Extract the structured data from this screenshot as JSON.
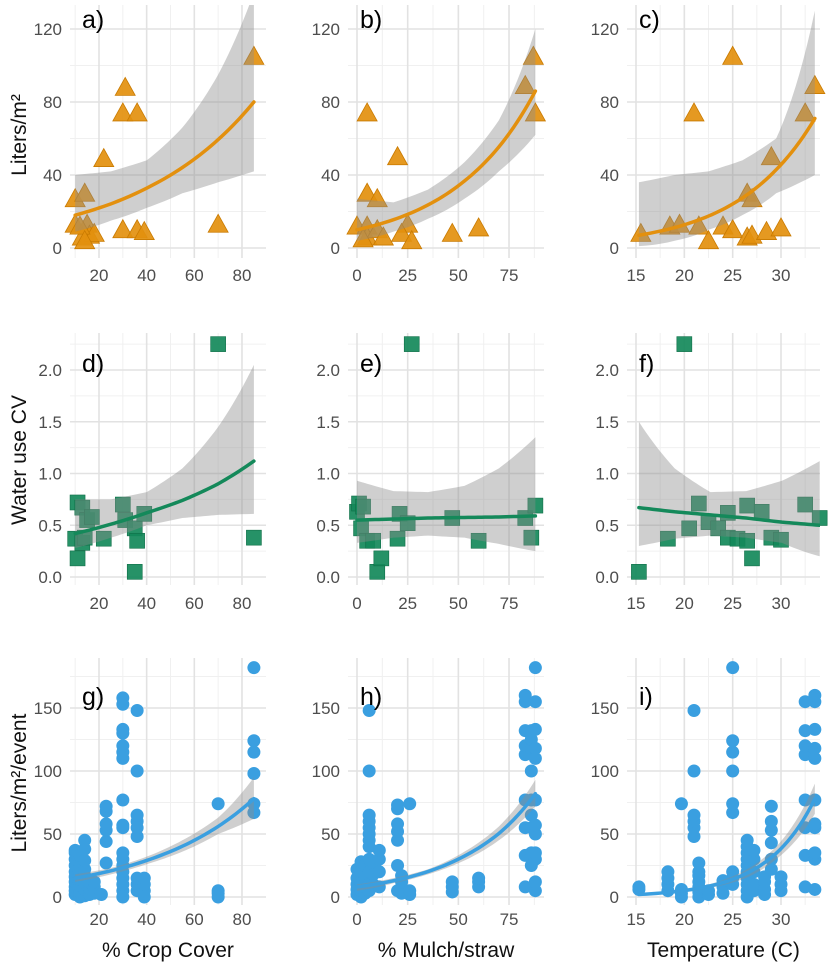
{
  "chart_data": [
    {
      "panel_label": "a)",
      "type": "scatter",
      "ylabel": "Liters/m²",
      "xlim": [
        7,
        88
      ],
      "ylim": [
        0,
        130
      ],
      "xticks": [
        "20",
        "40",
        "60",
        "80"
      ],
      "yticks": [
        "0",
        "40",
        "80",
        "120"
      ],
      "color": "#E3900E",
      "shape": "triangle",
      "points": [
        [
          10,
          27
        ],
        [
          14,
          30
        ],
        [
          10,
          13
        ],
        [
          15,
          13
        ],
        [
          13,
          6
        ],
        [
          16,
          7
        ],
        [
          18,
          8
        ],
        [
          12,
          12
        ],
        [
          14,
          4
        ],
        [
          22,
          49
        ],
        [
          31,
          88
        ],
        [
          30,
          74
        ],
        [
          36,
          74
        ],
        [
          30,
          10
        ],
        [
          36,
          10
        ],
        [
          39,
          9
        ],
        [
          70,
          13
        ],
        [
          85,
          105
        ]
      ],
      "fit": {
        "x": [
          10,
          25,
          40,
          55,
          70,
          85
        ],
        "y": [
          18,
          24.2,
          32.8,
          44.1,
          59.4,
          80
        ],
        "lo": [
          9,
          15,
          22,
          30,
          36,
          42
        ],
        "hi": [
          40,
          42,
          48,
          66,
          95,
          140
        ]
      }
    },
    {
      "panel_label": "b)",
      "type": "scatter",
      "xlim": [
        -4,
        91
      ],
      "ylim": [
        0,
        130
      ],
      "xticks": [
        "0",
        "25",
        "50",
        "75"
      ],
      "yticks": [
        "0",
        "40",
        "80",
        "120"
      ],
      "color": "#E3900E",
      "shape": "triangle",
      "points": [
        [
          0,
          12
        ],
        [
          5,
          74
        ],
        [
          5,
          30
        ],
        [
          10,
          27
        ],
        [
          5,
          12
        ],
        [
          5,
          6
        ],
        [
          10,
          10
        ],
        [
          3,
          5
        ],
        [
          13,
          6
        ],
        [
          20,
          50
        ],
        [
          25,
          13
        ],
        [
          22,
          8
        ],
        [
          27,
          4
        ],
        [
          47,
          8
        ],
        [
          60,
          11
        ],
        [
          83,
          89
        ],
        [
          87,
          105
        ],
        [
          88,
          74
        ]
      ],
      "fit": {
        "x": [
          0,
          18,
          35,
          53,
          70,
          88
        ],
        "y": [
          10,
          15.5,
          23.6,
          36.7,
          55.4,
          86
        ],
        "lo": [
          4,
          9,
          16,
          27,
          42,
          62
        ],
        "hi": [
          27,
          25,
          32,
          47,
          70,
          120
        ]
      }
    },
    {
      "panel_label": "c)",
      "type": "scatter",
      "xlim": [
        14.2,
        34.2
      ],
      "ylim": [
        0,
        130
      ],
      "xticks": [
        "15",
        "20",
        "25",
        "30"
      ],
      "yticks": [
        "0",
        "40",
        "80",
        "120"
      ],
      "color": "#E3900E",
      "shape": "triangle",
      "points": [
        [
          15.5,
          8
        ],
        [
          18.5,
          12
        ],
        [
          19.5,
          13
        ],
        [
          21,
          74
        ],
        [
          21.5,
          12
        ],
        [
          22.5,
          4
        ],
        [
          24,
          12
        ],
        [
          25,
          105
        ],
        [
          25,
          10
        ],
        [
          26.5,
          30
        ],
        [
          27,
          27
        ],
        [
          26.5,
          6
        ],
        [
          27,
          7
        ],
        [
          28.5,
          9
        ],
        [
          29,
          50
        ],
        [
          30,
          11
        ],
        [
          32.5,
          74
        ],
        [
          33.5,
          89
        ]
      ],
      "fit": {
        "x": [
          15.3,
          19,
          22.5,
          26,
          29.5,
          33.5
        ],
        "y": [
          7,
          11.2,
          17.5,
          27.4,
          42.9,
          71
        ],
        "lo": [
          1,
          4,
          10,
          18,
          30,
          40
        ],
        "hi": [
          36,
          40,
          42,
          48,
          60,
          130
        ]
      }
    },
    {
      "panel_label": "d)",
      "type": "scatter",
      "ylabel": "Water use CV",
      "xlim": [
        7,
        88
      ],
      "ylim": [
        0,
        2.36
      ],
      "xticks": [
        "20",
        "40",
        "60",
        "80"
      ],
      "yticks": [
        "0.0",
        "0.5",
        "1.0",
        "1.5",
        "2.0"
      ],
      "color": "#14895A",
      "shape": "square",
      "points": [
        [
          10,
          0.37
        ],
        [
          11,
          0.72
        ],
        [
          11,
          0.18
        ],
        [
          13,
          0.67
        ],
        [
          13,
          0.33
        ],
        [
          14,
          0.38
        ],
        [
          15,
          0.55
        ],
        [
          17,
          0.58
        ],
        [
          22,
          0.37
        ],
        [
          30,
          0.7
        ],
        [
          31,
          0.55
        ],
        [
          35,
          0.47
        ],
        [
          35,
          0.05
        ],
        [
          36,
          0.35
        ],
        [
          39,
          0.61
        ],
        [
          70,
          2.25
        ],
        [
          85,
          0.38
        ]
      ],
      "fit": {
        "x": [
          10,
          25,
          40,
          55,
          70,
          85
        ],
        "y": [
          0.42,
          0.51,
          0.62,
          0.74,
          0.9,
          1.12
        ],
        "lo": [
          0.28,
          0.38,
          0.5,
          0.57,
          0.6,
          0.61
        ],
        "hi": [
          0.75,
          0.75,
          0.82,
          1.05,
          1.45,
          2.05
        ]
      }
    },
    {
      "panel_label": "e)",
      "type": "scatter",
      "xlim": [
        -4,
        91
      ],
      "ylim": [
        0,
        2.36
      ],
      "xticks": [
        "0",
        "25",
        "50",
        "75"
      ],
      "yticks": [
        "0.0",
        "0.5",
        "1.0",
        "1.5",
        "2.0"
      ],
      "color": "#14895A",
      "shape": "square",
      "points": [
        [
          0,
          0.63
        ],
        [
          1,
          0.71
        ],
        [
          3,
          0.68
        ],
        [
          2,
          0.47
        ],
        [
          5,
          0.35
        ],
        [
          8,
          0.35
        ],
        [
          10,
          0.05
        ],
        [
          12,
          0.18
        ],
        [
          21,
          0.61
        ],
        [
          20,
          0.37
        ],
        [
          25,
          0.52
        ],
        [
          27,
          2.25
        ],
        [
          47,
          0.57
        ],
        [
          60,
          0.35
        ],
        [
          83,
          0.57
        ],
        [
          88,
          0.69
        ],
        [
          86,
          0.38
        ]
      ],
      "fit": {
        "x": [
          0,
          18,
          35,
          53,
          70,
          88
        ],
        "y": [
          0.55,
          0.56,
          0.57,
          0.575,
          0.58,
          0.59
        ],
        "lo": [
          0.33,
          0.38,
          0.4,
          0.38,
          0.32,
          0.25
        ],
        "hi": [
          0.93,
          0.83,
          0.82,
          0.88,
          1.05,
          1.35
        ]
      }
    },
    {
      "panel_label": "f)",
      "type": "scatter",
      "xlim": [
        14.2,
        34.2
      ],
      "ylim": [
        0,
        2.36
      ],
      "xticks": [
        "15",
        "20",
        "25",
        "30"
      ],
      "yticks": [
        "0.0",
        "0.5",
        "1.0",
        "1.5",
        "2.0"
      ],
      "color": "#14895A",
      "shape": "square",
      "points": [
        [
          15.3,
          0.05
        ],
        [
          18.3,
          0.37
        ],
        [
          20,
          2.25
        ],
        [
          21.5,
          0.71
        ],
        [
          20.5,
          0.47
        ],
        [
          22.5,
          0.53
        ],
        [
          23.5,
          0.47
        ],
        [
          24.5,
          0.62
        ],
        [
          24.5,
          0.38
        ],
        [
          25.5,
          0.37
        ],
        [
          26.5,
          0.35
        ],
        [
          26.5,
          0.69
        ],
        [
          27,
          0.18
        ],
        [
          28,
          0.63
        ],
        [
          29,
          0.38
        ],
        [
          30,
          0.36
        ],
        [
          32.5,
          0.7
        ],
        [
          34,
          0.57
        ]
      ],
      "fit": {
        "x": [
          15.3,
          19,
          22.7,
          26.4,
          30.1,
          34
        ],
        "y": [
          0.67,
          0.63,
          0.6,
          0.57,
          0.53,
          0.5
        ],
        "lo": [
          0.3,
          0.37,
          0.4,
          0.38,
          0.33,
          0.2
        ],
        "hi": [
          1.5,
          1.05,
          0.82,
          0.83,
          0.93,
          1.12
        ]
      }
    },
    {
      "panel_label": "g)",
      "type": "scatter",
      "ylabel": "Liters/m²/event",
      "xlabel": "% Crop Cover",
      "xlim": [
        7,
        88
      ],
      "ylim": [
        0,
        190
      ],
      "xticks": [
        "20",
        "40",
        "60",
        "80"
      ],
      "yticks": [
        "0",
        "50",
        "100",
        "150"
      ],
      "color": "#3A9FE0",
      "shape": "circle",
      "columns": [
        [
          10,
          [
            2,
            5,
            8,
            12,
            16,
            20,
            25,
            30,
            35,
            37
          ]
        ],
        [
          12,
          [
            0,
            4,
            9,
            14,
            19,
            24,
            28,
            33
          ]
        ],
        [
          14,
          [
            1,
            6,
            11,
            17,
            22,
            29,
            38,
            45
          ]
        ],
        [
          16,
          [
            2,
            7,
            12
          ]
        ],
        [
          18,
          [
            3,
            8,
            12
          ]
        ],
        [
          21,
          [
            2
          ]
        ],
        [
          23,
          [
            27,
            44,
            53,
            58,
            68,
            72
          ]
        ],
        [
          30,
          [
            0,
            5,
            10,
            15,
            20,
            25,
            30,
            35,
            55,
            57,
            77,
            110,
            115,
            120,
            130,
            133,
            153,
            158
          ]
        ],
        [
          36,
          [
            5,
            10,
            15,
            48,
            55,
            60,
            65,
            100,
            148
          ]
        ],
        [
          39,
          [
            0,
            5,
            10,
            15
          ]
        ],
        [
          70,
          [
            0,
            3,
            5,
            74
          ]
        ],
        [
          85,
          [
            67,
            74,
            98,
            115,
            124,
            182
          ]
        ]
      ],
      "fit": {
        "x": [
          10,
          25,
          40,
          55,
          70,
          85
        ],
        "y": [
          15,
          20.8,
          29,
          40.3,
          56,
          78
        ],
        "lo": [
          12,
          18,
          26,
          36,
          50,
          62
        ],
        "hi": [
          18,
          23,
          32,
          45,
          63,
          95
        ]
      }
    },
    {
      "panel_label": "h)",
      "type": "scatter",
      "xlabel": "% Mulch/straw",
      "xlim": [
        -4,
        91
      ],
      "ylim": [
        0,
        190
      ],
      "xticks": [
        "0",
        "25",
        "50",
        "75"
      ],
      "yticks": [
        "0",
        "50",
        "100",
        "150"
      ],
      "color": "#3A9FE0",
      "shape": "circle",
      "columns": [
        [
          0,
          [
            2,
            6,
            10,
            15,
            22
          ]
        ],
        [
          2,
          [
            0,
            5,
            12,
            20,
            28
          ]
        ],
        [
          4,
          [
            3,
            8,
            16,
            25
          ]
        ],
        [
          6,
          [
            5,
            10,
            20,
            30,
            40,
            45,
            50,
            55,
            60,
            65,
            100,
            148
          ]
        ],
        [
          8,
          [
            10,
            18,
            28
          ]
        ],
        [
          11,
          [
            8,
            20,
            30,
            37
          ]
        ],
        [
          20,
          [
            5,
            25,
            45,
            52,
            58,
            70,
            73
          ]
        ],
        [
          22,
          [
            3,
            12,
            17
          ]
        ],
        [
          26,
          [
            2,
            5,
            74
          ]
        ],
        [
          47,
          [
            4,
            8,
            12
          ]
        ],
        [
          60,
          [
            8,
            12,
            15
          ]
        ],
        [
          83,
          [
            8,
            33,
            55,
            77,
            113,
            120,
            132,
            155,
            160
          ]
        ],
        [
          86,
          [
            25,
            35,
            55,
            65,
            77,
            100,
            118,
            125,
            132
          ]
        ],
        [
          88,
          [
            5,
            12,
            30,
            35,
            50,
            57,
            77,
            110,
            118,
            133,
            155,
            182
          ]
        ]
      ],
      "fit": {
        "x": [
          0,
          18,
          35,
          53,
          70,
          88
        ],
        "y": [
          8,
          12.9,
          20.2,
          32.5,
          50.4,
          82
        ],
        "lo": [
          5,
          11,
          18,
          29,
          45,
          72
        ],
        "hi": [
          10,
          15,
          22,
          36,
          56,
          93
        ]
      }
    },
    {
      "panel_label": "i)",
      "type": "scatter",
      "xlabel": "Temperature (C)",
      "xlim": [
        14.2,
        34.2
      ],
      "ylim": [
        0,
        190
      ],
      "xticks": [
        "15",
        "20",
        "25",
        "30"
      ],
      "yticks": [
        "0",
        "50",
        "100",
        "150"
      ],
      "color": "#3A9FE0",
      "shape": "circle",
      "columns": [
        [
          15.3,
          [
            6,
            8
          ]
        ],
        [
          18.3,
          [
            5,
            10,
            15,
            20
          ]
        ],
        [
          19.7,
          [
            0,
            3,
            6,
            74
          ]
        ],
        [
          21,
          [
            48,
            55,
            60,
            65,
            100,
            148
          ]
        ],
        [
          21.5,
          [
            0,
            4,
            8,
            12,
            17,
            20,
            27
          ]
        ],
        [
          22.5,
          [
            2,
            5
          ]
        ],
        [
          24,
          [
            3,
            8,
            13
          ]
        ],
        [
          25,
          [
            10,
            15,
            20,
            67,
            74,
            100,
            115,
            124,
            182
          ]
        ],
        [
          26.5,
          [
            0,
            5,
            10,
            15,
            20,
            25,
            30,
            35,
            40,
            45
          ]
        ],
        [
          27.2,
          [
            5,
            10,
            20,
            30,
            37
          ]
        ],
        [
          28.3,
          [
            2,
            6,
            12,
            16
          ]
        ],
        [
          29,
          [
            22,
            30,
            43,
            53,
            60,
            72
          ]
        ],
        [
          30,
          [
            5,
            10,
            16
          ]
        ],
        [
          32.5,
          [
            8,
            33,
            55,
            77,
            113,
            120,
            132,
            155
          ]
        ],
        [
          33.5,
          [
            6,
            30,
            35,
            55,
            58,
            77,
            110,
            118,
            133,
            155,
            160
          ]
        ]
      ],
      "fit": {
        "x": [
          15.3,
          19,
          22.5,
          26,
          29.5,
          33.5
        ],
        "y": [
          2,
          4.2,
          8.5,
          17.2,
          34.7,
          78
        ],
        "lo": [
          1,
          3,
          7,
          14,
          30,
          66
        ],
        "hi": [
          3,
          5.5,
          10,
          20,
          40,
          90
        ]
      }
    }
  ]
}
